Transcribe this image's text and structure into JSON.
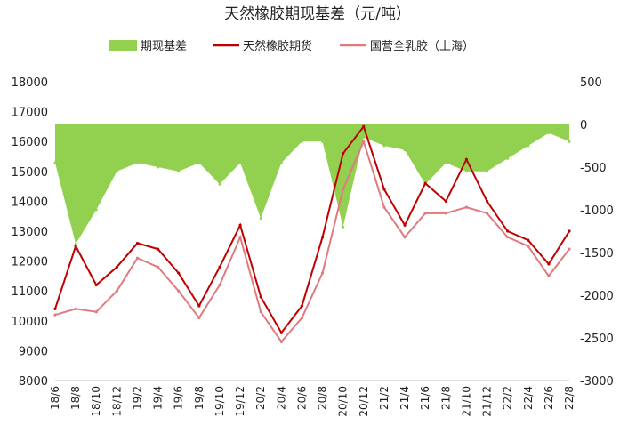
{
  "chart_data": {
    "type": "line",
    "title": "天然橡胶期现基差（元/吨）",
    "legend_placement": "top",
    "grid": false,
    "x": [
      "18/6",
      "18/8",
      "18/10",
      "18/12",
      "19/2",
      "19/4",
      "19/6",
      "19/8",
      "19/10",
      "19/12",
      "20/2",
      "20/4",
      "20/6",
      "20/8",
      "20/10",
      "20/12",
      "21/2",
      "21/4",
      "21/6",
      "21/8",
      "21/10",
      "21/12",
      "22/2",
      "22/4",
      "22/6",
      "22/8"
    ],
    "ylim": [
      8000,
      18000
    ],
    "yticks": [
      8000,
      9000,
      10000,
      11000,
      12000,
      13000,
      14000,
      15000,
      16000,
      17000,
      18000
    ],
    "y2lim": [
      -3000,
      500
    ],
    "y2ticks": [
      -3000,
      -2500,
      -2000,
      -1500,
      -1000,
      -500,
      0,
      500
    ],
    "series": [
      {
        "name": "期现基差",
        "kind": "area",
        "axis": "right",
        "color": "#92d050",
        "values": [
          -450,
          -1400,
          -1000,
          -550,
          -450,
          -500,
          -550,
          -450,
          -700,
          -450,
          -1100,
          -450,
          -200,
          -200,
          -1200,
          -150,
          -250,
          -300,
          -700,
          -450,
          -550,
          -550,
          -400,
          -250,
          -100,
          -200
        ]
      },
      {
        "name": "天然橡胶期货",
        "kind": "line",
        "axis": "left",
        "color": "#c00000",
        "values": [
          10400,
          12500,
          11200,
          11800,
          12600,
          12400,
          11600,
          10500,
          11800,
          13200,
          10800,
          9600,
          10500,
          12800,
          15600,
          16500,
          14400,
          13200,
          14600,
          14000,
          15400,
          14000,
          13000,
          12700,
          11900,
          13000
        ]
      },
      {
        "name": "国营全乳胶（上海）",
        "kind": "line",
        "axis": "left",
        "color": "#e07a7f",
        "values": [
          10200,
          10400,
          10300,
          11000,
          12100,
          11800,
          11000,
          10100,
          11200,
          12800,
          10300,
          9300,
          10100,
          11600,
          14400,
          16000,
          13800,
          12800,
          13600,
          13600,
          13800,
          13600,
          12800,
          12500,
          11500,
          12400
        ]
      }
    ]
  }
}
